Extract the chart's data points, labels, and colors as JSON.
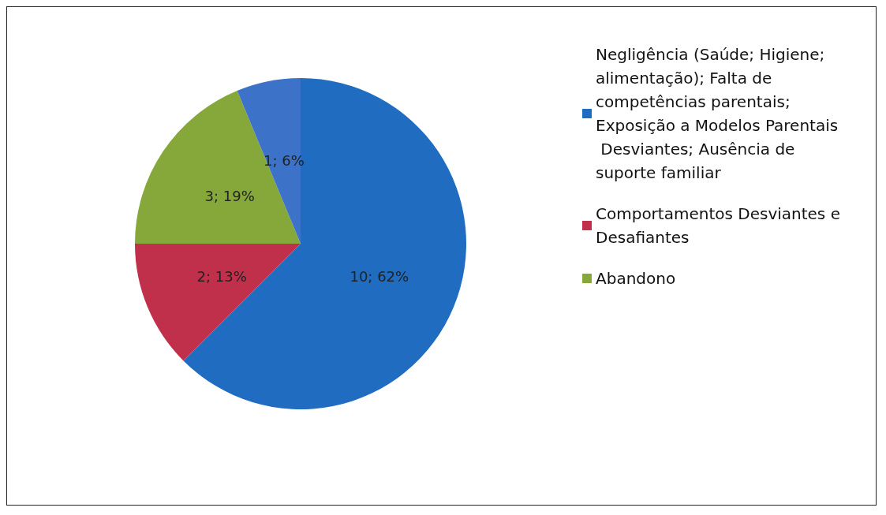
{
  "chart_data": {
    "type": "pie",
    "categories": [
      "Negligência (Saúde; Higiene; alimentação); Falta de competências parentais;Exposição a Modelos Parentais Desviantes; Ausência de suporte familiar",
      "Comportamentos Desviantes e Desafiantes",
      "Abandono",
      null
    ],
    "values": [
      10,
      2,
      3,
      1
    ],
    "value_labels": [
      "10; 62%",
      "2; 13%",
      "3; 19%",
      "1; 6%"
    ],
    "colors": [
      "#1f6cc0",
      "#c0304a",
      "#86a83a",
      "#3d72c9"
    ],
    "legend": "right"
  }
}
